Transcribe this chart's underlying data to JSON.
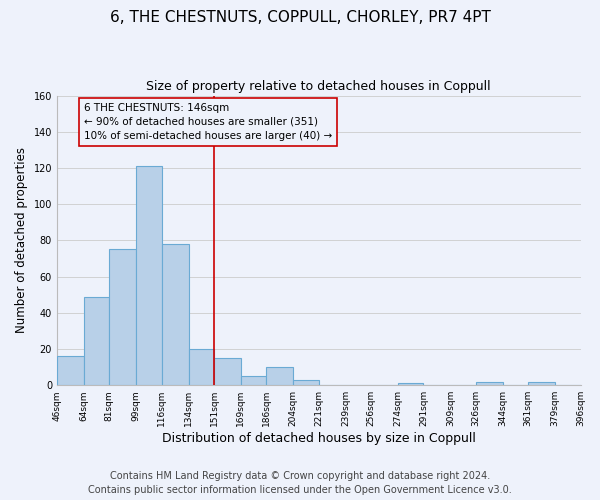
{
  "title": "6, THE CHESTNUTS, COPPULL, CHORLEY, PR7 4PT",
  "subtitle": "Size of property relative to detached houses in Coppull",
  "xlabel": "Distribution of detached houses by size in Coppull",
  "ylabel": "Number of detached properties",
  "bar_edges": [
    46,
    64,
    81,
    99,
    116,
    134,
    151,
    169,
    186,
    204,
    221,
    239,
    256,
    274,
    291,
    309,
    326,
    344,
    361,
    379,
    396
  ],
  "bar_heights": [
    16,
    49,
    75,
    121,
    78,
    20,
    15,
    5,
    10,
    3,
    0,
    0,
    0,
    1,
    0,
    0,
    2,
    0,
    2,
    0
  ],
  "bar_color": "#b8d0e8",
  "bar_edge_color": "#6aaad4",
  "bar_linewidth": 0.8,
  "vline_x": 151,
  "vline_color": "#cc0000",
  "vline_linewidth": 1.2,
  "annotation_lines": [
    "6 THE CHESTNUTS: 146sqm",
    "← 90% of detached houses are smaller (351)",
    "10% of semi-detached houses are larger (40) →"
  ],
  "annotation_fontsize": 7.5,
  "ylim": [
    0,
    160
  ],
  "yticks": [
    0,
    20,
    40,
    60,
    80,
    100,
    120,
    140,
    160
  ],
  "tick_labels": [
    "46sqm",
    "64sqm",
    "81sqm",
    "99sqm",
    "116sqm",
    "134sqm",
    "151sqm",
    "169sqm",
    "186sqm",
    "204sqm",
    "221sqm",
    "239sqm",
    "256sqm",
    "274sqm",
    "291sqm",
    "309sqm",
    "326sqm",
    "344sqm",
    "361sqm",
    "379sqm",
    "396sqm"
  ],
  "footnote1": "Contains HM Land Registry data © Crown copyright and database right 2024.",
  "footnote2": "Contains public sector information licensed under the Open Government Licence v3.0.",
  "grid_color": "#cccccc",
  "background_color": "#eef2fb",
  "title_fontsize": 11,
  "subtitle_fontsize": 9,
  "xlabel_fontsize": 9,
  "ylabel_fontsize": 8.5,
  "footnote_fontsize": 7,
  "tick_fontsize": 6.5
}
